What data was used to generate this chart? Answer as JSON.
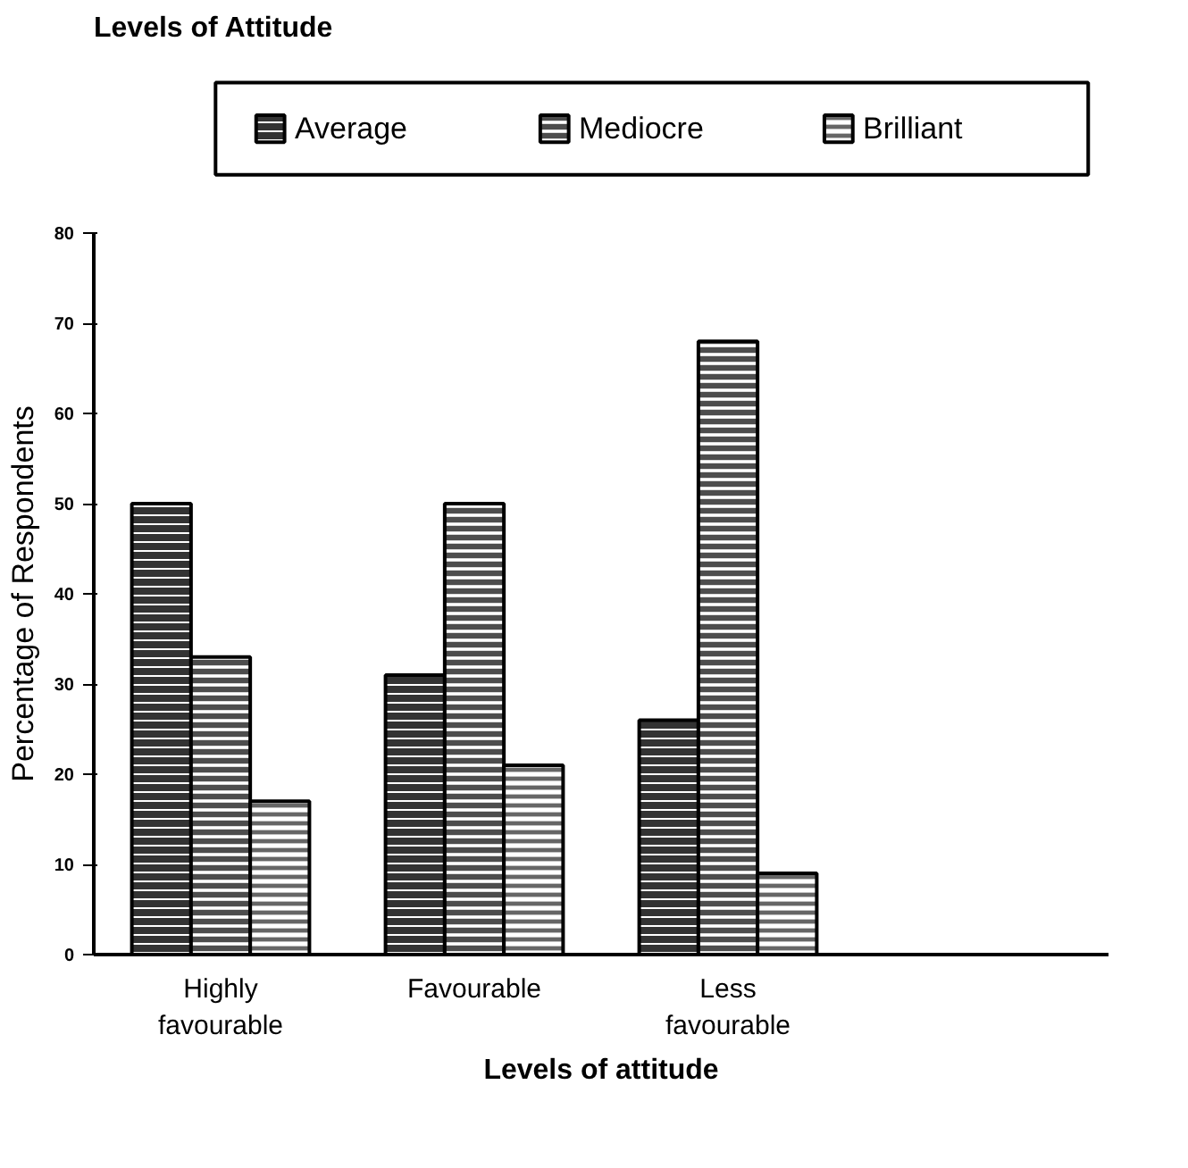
{
  "chart_data": {
    "type": "bar",
    "title": "Levels of Attitude",
    "xlabel": "Levels of attitude",
    "ylabel": "Percentage of Respondents",
    "categories": [
      "Highly favourable",
      "Favourable",
      "Less favourable",
      null
    ],
    "series": [
      {
        "name": "Average",
        "color": "#333333",
        "values": [
          50,
          31,
          26,
          null
        ]
      },
      {
        "name": "Mediocre",
        "color": "#4d4d4d",
        "values": [
          33,
          50,
          68,
          null
        ]
      },
      {
        "name": "Brilliant",
        "color": "#666666",
        "values": [
          17,
          21,
          9,
          null
        ]
      }
    ],
    "ylim": [
      0,
      80
    ],
    "yticks": [
      0,
      10,
      20,
      30,
      40,
      50,
      60,
      70,
      80
    ],
    "grid": false,
    "legend": "top"
  }
}
